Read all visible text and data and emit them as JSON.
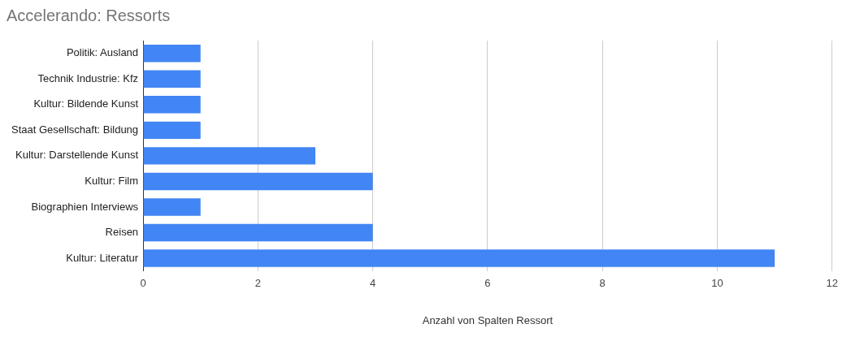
{
  "chart_data": {
    "type": "bar",
    "orientation": "horizontal",
    "title": "Accelerando: Ressorts",
    "xlabel": "Anzahl von Spalten Ressort",
    "categories": [
      "Politik: Ausland",
      "Technik Industrie: Kfz",
      "Kultur: Bildende Kunst",
      "Staat Gesellschaft: Bildung",
      "Kultur: Darstellende Kunst",
      "Kultur: Film",
      "Biographien Interviews",
      "Reisen",
      "Kultur: Literatur"
    ],
    "values": [
      1,
      1,
      1,
      1,
      3,
      4,
      1,
      4,
      11
    ],
    "color": "#4285f4",
    "xlim": [
      0,
      12
    ],
    "xticks": [
      0,
      2,
      4,
      6,
      8,
      10,
      12
    ],
    "grid": "x",
    "legend": false
  }
}
